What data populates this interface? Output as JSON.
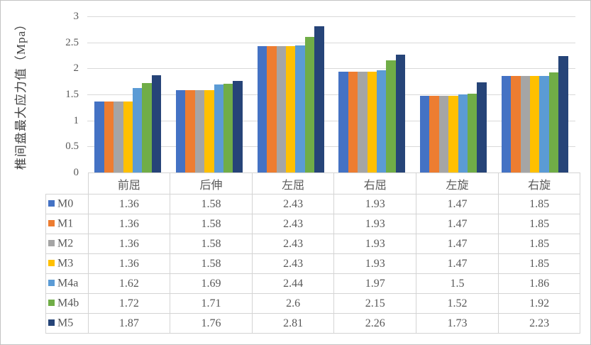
{
  "chart_data": {
    "type": "bar",
    "title": "",
    "ylabel": "椎间盘最大应力值（Mpa）",
    "xlabel": "",
    "categories": [
      "前屈",
      "后伸",
      "左屈",
      "右屈",
      "左旋",
      "右旋"
    ],
    "series": [
      {
        "name": "M0",
        "color": "#4472C4",
        "values": [
          1.36,
          1.58,
          2.43,
          1.93,
          1.47,
          1.85
        ]
      },
      {
        "name": "M1",
        "color": "#ED7D31",
        "values": [
          1.36,
          1.58,
          2.43,
          1.93,
          1.47,
          1.85
        ]
      },
      {
        "name": "M2",
        "color": "#A5A5A5",
        "values": [
          1.36,
          1.58,
          2.43,
          1.93,
          1.47,
          1.85
        ]
      },
      {
        "name": "M3",
        "color": "#FFC000",
        "values": [
          1.36,
          1.58,
          2.43,
          1.93,
          1.47,
          1.85
        ]
      },
      {
        "name": "M4a",
        "color": "#5B9BD5",
        "values": [
          1.62,
          1.69,
          2.44,
          1.97,
          1.5,
          1.86
        ]
      },
      {
        "name": "M4b",
        "color": "#70AD47",
        "values": [
          1.72,
          1.71,
          2.6,
          2.15,
          1.52,
          1.92
        ]
      },
      {
        "name": "M5",
        "color": "#264478",
        "values": [
          1.87,
          1.76,
          2.81,
          2.26,
          1.73,
          2.23
        ]
      }
    ],
    "y_axis": {
      "min": 0,
      "max": 3,
      "step": 0.5,
      "tick_labels": [
        "0",
        "0.5",
        "1",
        "1.5",
        "2",
        "2.5",
        "3"
      ]
    },
    "grid": true,
    "legend_position": "data-table-left-column",
    "colors": {
      "gridline": "#D9D9D9",
      "axis_text": "#595959",
      "table_border": "#D4D4D4",
      "table_text": "#595959",
      "frame_border": "#C3C3C3"
    }
  }
}
